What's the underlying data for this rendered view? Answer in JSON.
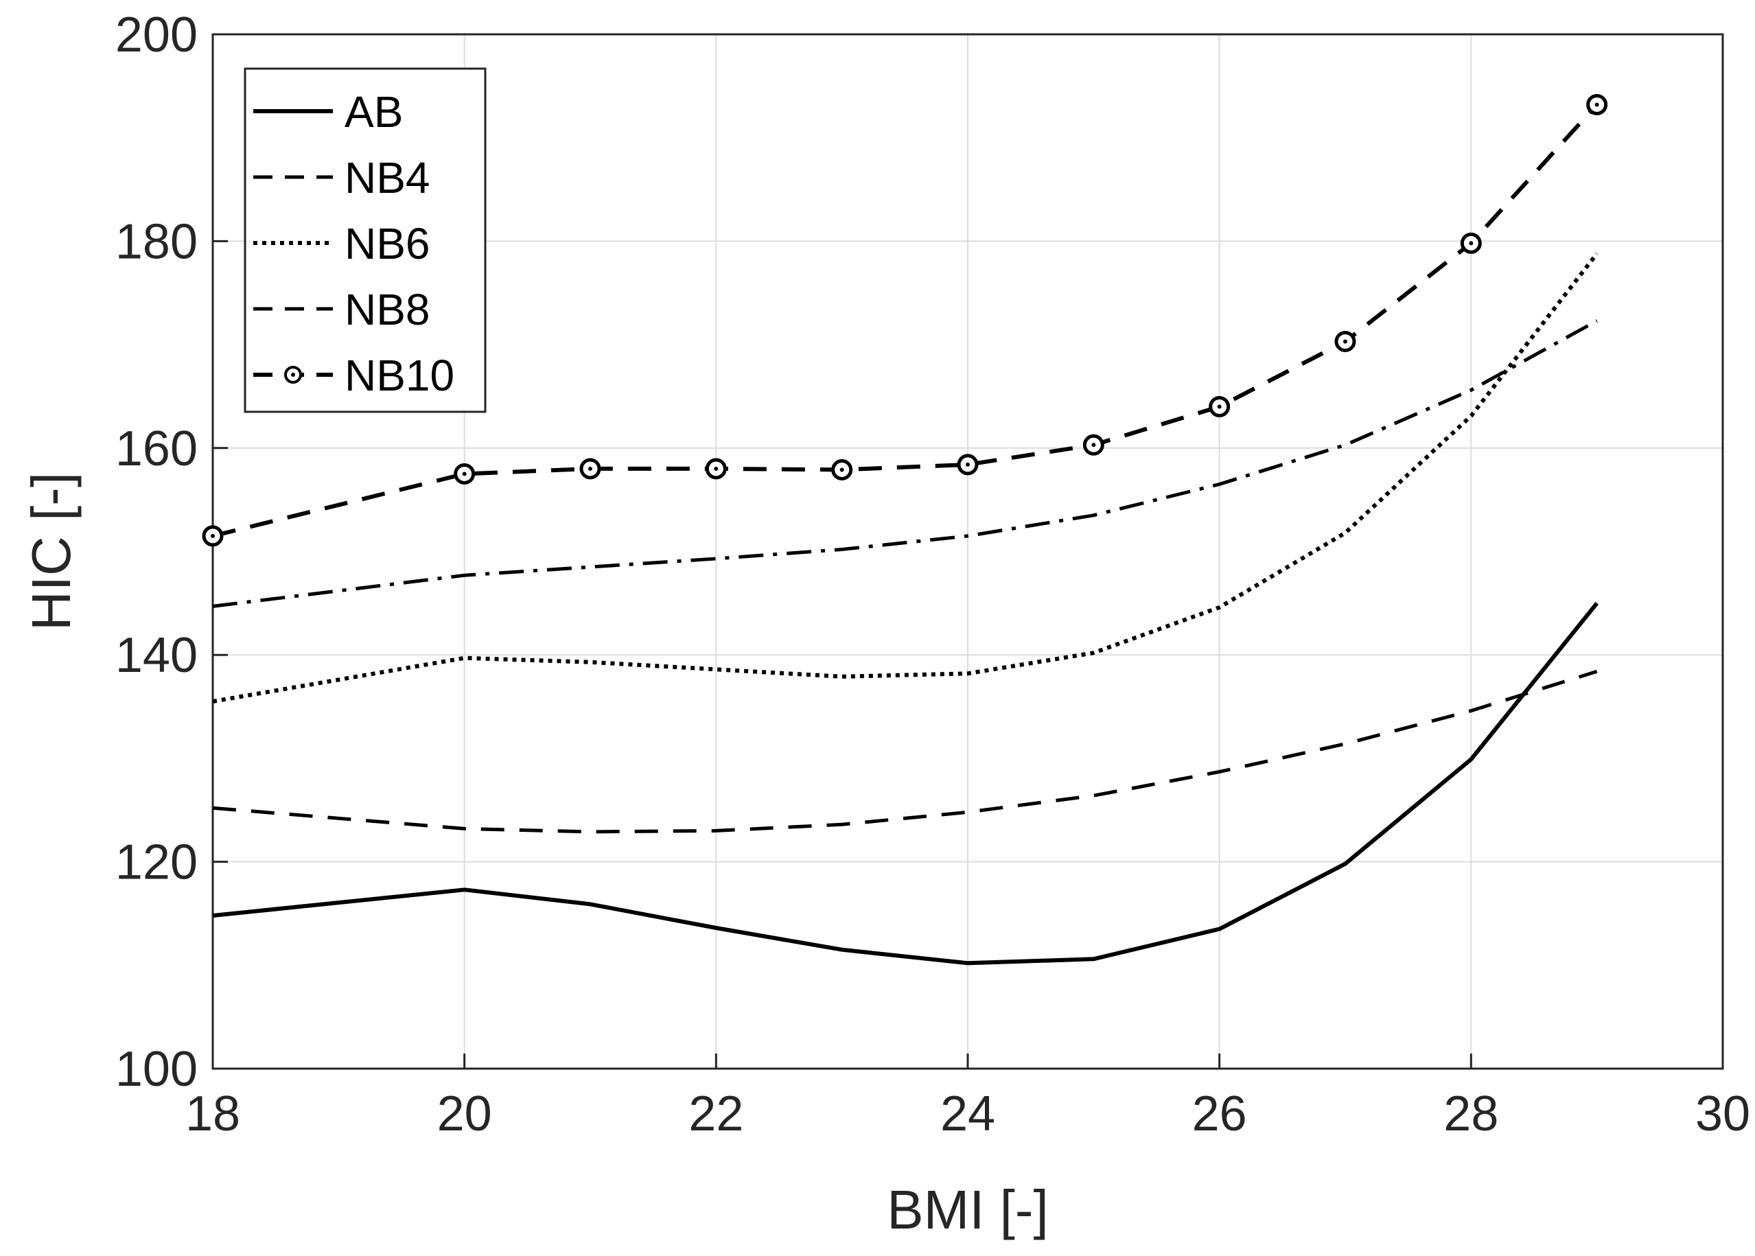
{
  "chart_data": {
    "type": "line",
    "title": "",
    "xlabel": "BMI [-]",
    "ylabel": "HIC [-]",
    "xlim": [
      18,
      30
    ],
    "ylim": [
      100,
      200
    ],
    "xticks": [
      18,
      20,
      22,
      24,
      26,
      28,
      30
    ],
    "yticks": [
      100,
      120,
      140,
      160,
      180,
      200
    ],
    "grid": true,
    "legend_position": "top-left",
    "x": [
      18,
      20,
      21,
      22,
      23,
      24,
      25,
      26,
      27,
      28,
      29
    ],
    "series": [
      {
        "name": "AB",
        "style": "solid",
        "marker": "none",
        "values": [
          114.8,
          117.3,
          115.9,
          113.6,
          111.5,
          110.2,
          110.6,
          113.5,
          119.8,
          129.9,
          145.0
        ]
      },
      {
        "name": "NB4",
        "style": "dashed",
        "marker": "none",
        "values": [
          125.2,
          123.2,
          122.9,
          123.0,
          123.6,
          124.8,
          126.4,
          128.7,
          131.4,
          134.6,
          138.4
        ]
      },
      {
        "name": "NB6",
        "style": "dotted",
        "marker": "none",
        "values": [
          135.5,
          139.7,
          139.3,
          138.6,
          137.9,
          138.2,
          140.2,
          144.6,
          151.8,
          163.1,
          178.8
        ]
      },
      {
        "name": "NB8",
        "style": "dashdot",
        "marker": "none",
        "values": [
          144.7,
          147.7,
          148.5,
          149.3,
          150.2,
          151.5,
          153.5,
          156.5,
          160.3,
          165.6,
          172.3
        ]
      },
      {
        "name": "NB10",
        "style": "dashed-marker",
        "marker": "circle",
        "values": [
          151.5,
          157.5,
          158.0,
          158.0,
          157.9,
          158.4,
          160.3,
          164.0,
          170.3,
          179.8,
          193.2
        ]
      }
    ]
  }
}
